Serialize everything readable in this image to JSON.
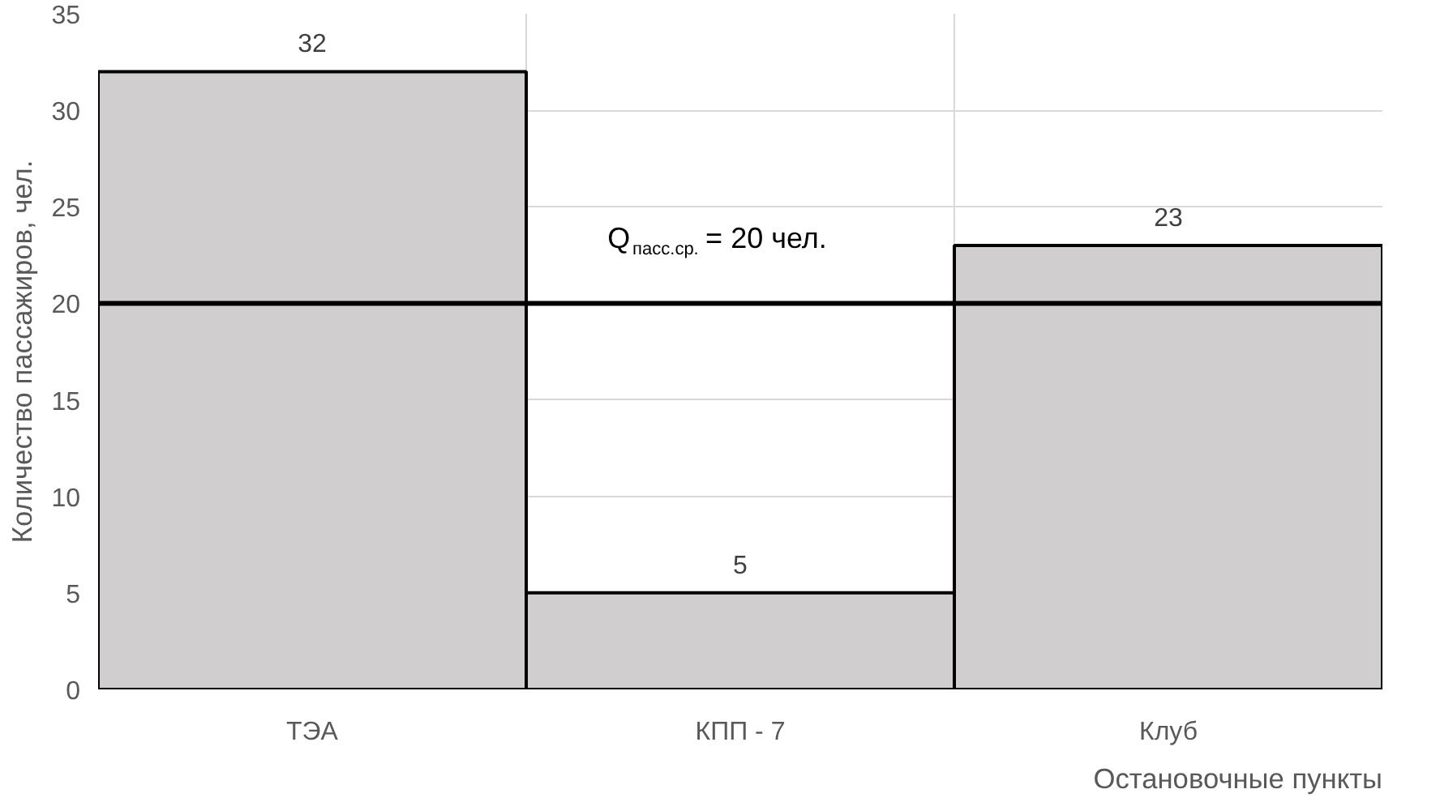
{
  "chart_data": {
    "type": "bar",
    "xlabel": "Остановочные пункты",
    "ylabel": "Количество пассажиров, чел.",
    "categories": [
      "ТЭА",
      "КПП - 7",
      "Клуб"
    ],
    "values": [
      32,
      5,
      23
    ],
    "color": "#d0cece",
    "ylim": [
      0,
      35
    ],
    "yticks": [
      0,
      5,
      10,
      15,
      20,
      25,
      30,
      35
    ],
    "grid": true,
    "data_labels": true,
    "ref_lines": [
      {
        "axis": "y",
        "value": 20,
        "label": "Q$_{пасс.ср.}$= 20 чел.",
        "color": "#000000"
      }
    ]
  }
}
